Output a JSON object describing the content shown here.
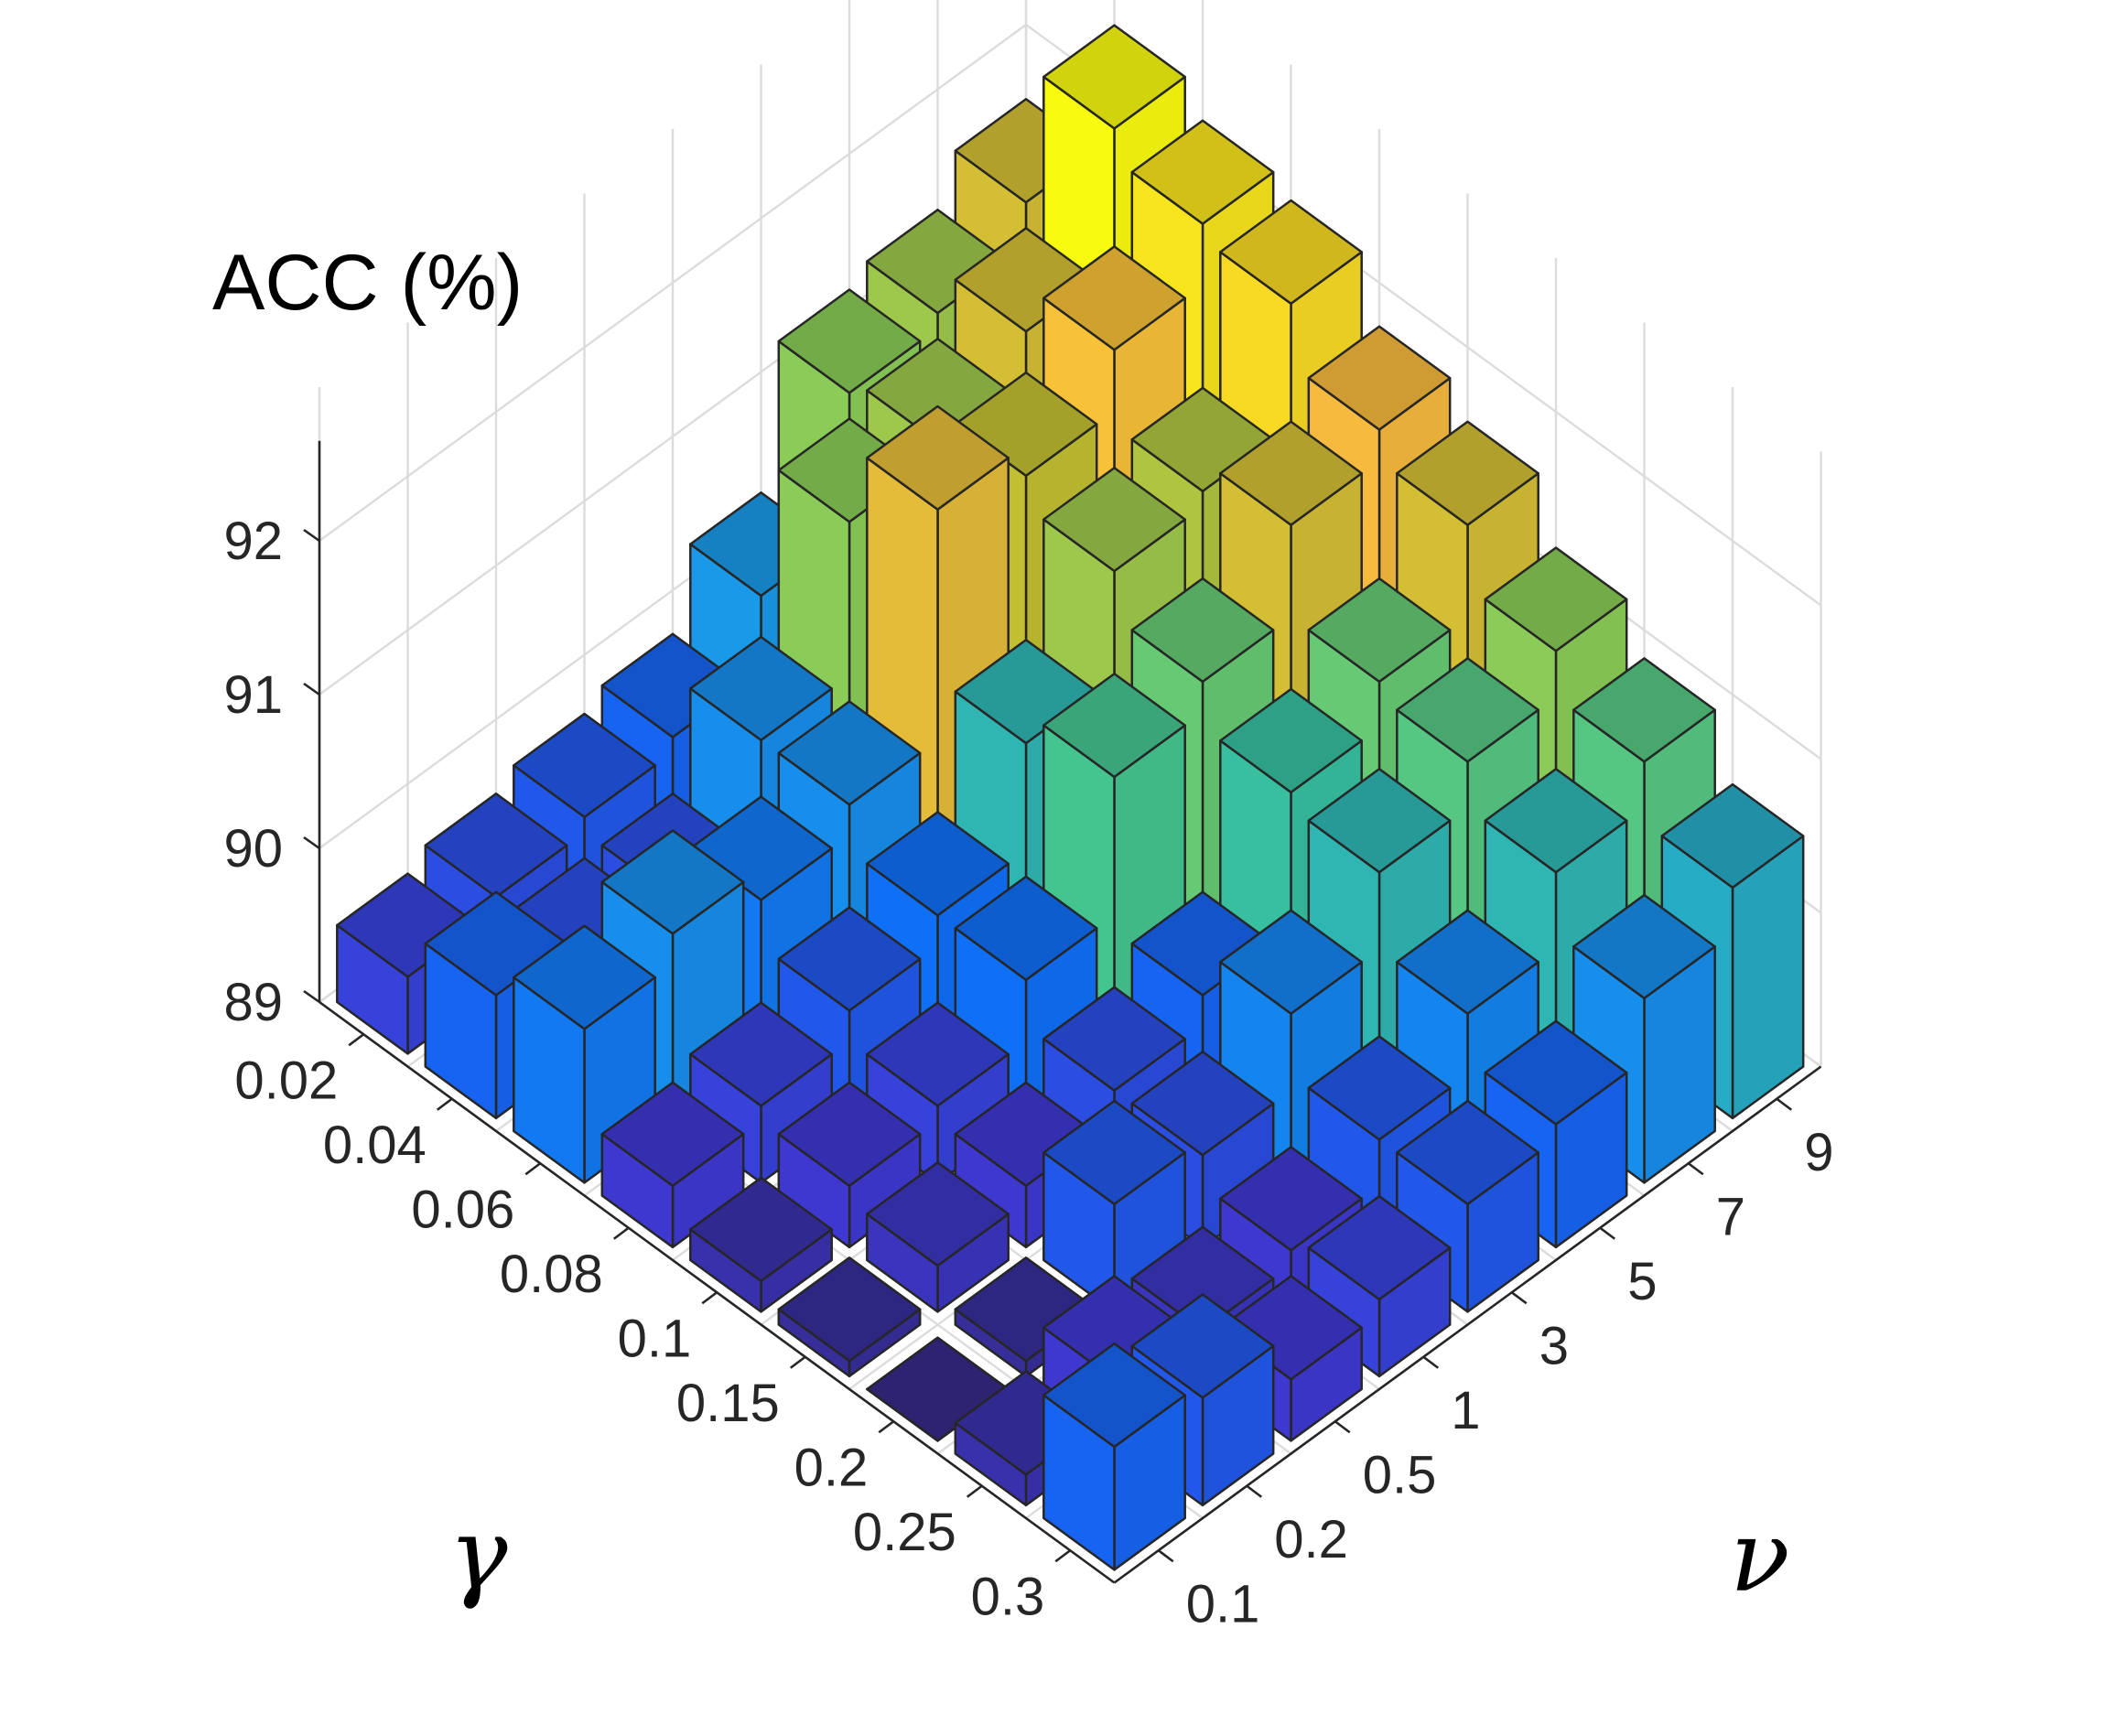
{
  "chart_data": {
    "type": "bar3d",
    "z_title": "ACC (%)",
    "x_title": "γ",
    "y_title": "ν",
    "gamma": [
      "0.02",
      "0.04",
      "0.06",
      "0.08",
      "0.1",
      "0.15",
      "0.2",
      "0.25",
      "0.3"
    ],
    "nu": [
      "0.1",
      "0.2",
      "0.5",
      "1",
      "3",
      "5",
      "7",
      "9"
    ],
    "z_ticks": [
      "89",
      "90",
      "91",
      "92"
    ],
    "zlim": [
      89,
      93
    ],
    "grid": true,
    "values": [
      [
        89.5,
        89.6,
        89.7,
        89.8,
        90.3,
        91.2,
        91.3,
        91.6
      ],
      [
        89.8,
        89.6,
        89.6,
        90.2,
        91.2,
        91.3,
        91.6,
        92.5
      ],
      [
        90.0,
        90.2,
        90.0,
        90.2,
        91.7,
        91.5,
        91.9,
        92.3
      ],
      [
        89.4,
        89.5,
        89.7,
        89.9,
        90.6,
        91.3,
        91.4,
        92.2
      ],
      [
        89.2,
        89.4,
        89.5,
        89.9,
        90.8,
        91.0,
        91.6,
        91.8
      ],
      [
        89.1,
        89.3,
        89.4,
        89.6,
        89.8,
        90.7,
        91.0,
        91.6
      ],
      [
        89.0,
        89.1,
        89.7,
        89.6,
        90.1,
        90.6,
        90.9,
        91.2
      ],
      [
        89.2,
        89.4,
        89.3,
        89.4,
        89.7,
        90.1,
        90.6,
        90.9
      ],
      [
        89.8,
        89.7,
        89.4,
        89.5,
        89.7,
        89.8,
        90.2,
        90.5
      ]
    ]
  }
}
